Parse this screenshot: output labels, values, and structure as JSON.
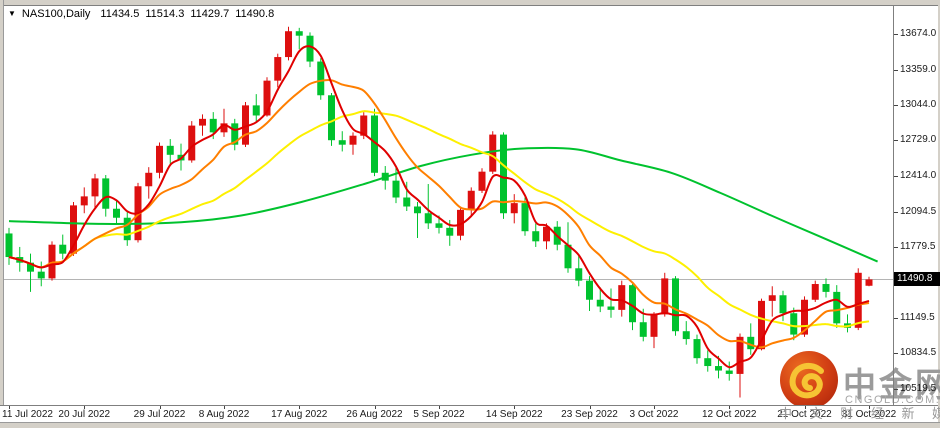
{
  "header": {
    "dropdown_icon": "▼",
    "symbol": "NAS100,Daily",
    "open": "11434.5",
    "high": "11514.3",
    "low": "11429.7",
    "close": "11490.8"
  },
  "price_axis": {
    "tick_labels": [
      "13674.0",
      "13359.0",
      "13044.0",
      "12729.0",
      "12414.0",
      "12094.5",
      "11779.5",
      "11464.5",
      "11149.5",
      "10834.5",
      "10519.5"
    ],
    "current_price_tag": "11490.8"
  },
  "time_axis": {
    "tick_labels": [
      "11 Jul 2022",
      "20 Jul 2022",
      "29 Jul 2022",
      "8 Aug 2022",
      "17 Aug 2022",
      "26 Aug 2022",
      "5 Sep 2022",
      "14 Sep 2022",
      "23 Sep 2022",
      "3 Oct 2022",
      "12 Oct 2022",
      "21 Oct 2022",
      "31 Oct 2022"
    ],
    "tick_bar_indices": [
      0,
      7,
      14,
      20,
      27,
      34,
      40,
      47,
      54,
      60,
      67,
      74,
      80
    ]
  },
  "watermark": {
    "brand": "中金网",
    "domain": "CNGOLD.COM.CN",
    "tagline": "中 文 财 经 新 媒 体",
    "logo_circle_color_outer": "#c2330f",
    "logo_circle_color_inner": "#e8601c",
    "logo_swirl_color": "#f6c434"
  },
  "chart_data": {
    "type": "candlestick",
    "symbol": "NAS100",
    "timeframe": "Daily",
    "grid": false,
    "legend": false,
    "ylim": [
      10350,
      13950
    ],
    "current_price_line": 11490.8,
    "colors": {
      "bull_candle": "#dd0f0f",
      "bear_candle": "#00c22e",
      "ma_fast": "#e00000",
      "ma_mid": "#ff7f00",
      "ma_slow": "#fdf000",
      "ma_long": "#00c22e",
      "price_line": "#b4b4b4"
    },
    "ma_periods_estimated": {
      "fast_red": 4,
      "mid_orange": 9,
      "slow_yellow": 20
    },
    "ma_long_points": [
      [
        0,
        12010
      ],
      [
        8.6,
        11985
      ],
      [
        16,
        12000
      ],
      [
        21.6,
        12060
      ],
      [
        27.2,
        12180
      ],
      [
        32.7,
        12330
      ],
      [
        38.3,
        12500
      ],
      [
        43,
        12600
      ],
      [
        47.6,
        12655
      ],
      [
        52.7,
        12650
      ],
      [
        56.9,
        12550
      ],
      [
        61.6,
        12440
      ],
      [
        66.2,
        12260
      ],
      [
        70.9,
        12060
      ],
      [
        75.5,
        11870
      ],
      [
        80.8,
        11650
      ]
    ],
    "candle_columns": [
      "date",
      "open",
      "high",
      "low",
      "close"
    ],
    "candles": [
      [
        "11 Jul",
        11900,
        11950,
        11620,
        11690
      ],
      [
        "12 Jul",
        11690,
        11780,
        11560,
        11640
      ],
      [
        "13 Jul",
        11640,
        11720,
        11380,
        11560
      ],
      [
        "14 Jul",
        11560,
        11650,
        11430,
        11500
      ],
      [
        "15 Jul",
        11500,
        11830,
        11480,
        11800
      ],
      [
        "18 Jul",
        11800,
        11890,
        11670,
        11720
      ],
      [
        "19 Jul",
        11720,
        12180,
        11700,
        12150
      ],
      [
        "20 Jul",
        12150,
        12310,
        12080,
        12230
      ],
      [
        "21 Jul",
        12230,
        12430,
        12130,
        12390
      ],
      [
        "22 Jul",
        12390,
        12420,
        12050,
        12120
      ],
      [
        "25 Jul",
        12120,
        12200,
        11980,
        12040
      ],
      [
        "26 Jul",
        12040,
        12090,
        11790,
        11840
      ],
      [
        "27 Jul",
        11840,
        12350,
        11820,
        12320
      ],
      [
        "28 Jul",
        12320,
        12490,
        12210,
        12440
      ],
      [
        "29 Jul",
        12440,
        12710,
        12390,
        12680
      ],
      [
        "1 Aug",
        12680,
        12740,
        12520,
        12600
      ],
      [
        "2 Aug",
        12600,
        12700,
        12460,
        12550
      ],
      [
        "3 Aug",
        12550,
        12900,
        12530,
        12860
      ],
      [
        "4 Aug",
        12860,
        12960,
        12770,
        12920
      ],
      [
        "5 Aug",
        12920,
        12980,
        12740,
        12800
      ],
      [
        "8 Aug",
        12800,
        13010,
        12760,
        12880
      ],
      [
        "9 Aug",
        12880,
        12920,
        12640,
        12690
      ],
      [
        "10 Aug",
        12690,
        13070,
        12670,
        13040
      ],
      [
        "11 Aug",
        13040,
        13140,
        12890,
        12950
      ],
      [
        "12 Aug",
        12950,
        13290,
        12940,
        13260
      ],
      [
        "15 Aug",
        13260,
        13500,
        13200,
        13470
      ],
      [
        "16 Aug",
        13470,
        13740,
        13440,
        13700
      ],
      [
        "17 Aug",
        13700,
        13730,
        13540,
        13660
      ],
      [
        "18 Aug",
        13660,
        13690,
        13380,
        13430
      ],
      [
        "19 Aug",
        13430,
        13460,
        13090,
        13130
      ],
      [
        "22 Aug",
        13130,
        13150,
        12680,
        12730
      ],
      [
        "23 Aug",
        12730,
        12810,
        12630,
        12690
      ],
      [
        "24 Aug",
        12690,
        12800,
        12600,
        12770
      ],
      [
        "25 Aug",
        12770,
        12980,
        12740,
        12950
      ],
      [
        "26 Aug",
        12950,
        13010,
        12410,
        12440
      ],
      [
        "29 Aug",
        12440,
        12500,
        12290,
        12370
      ],
      [
        "30 Aug",
        12370,
        12490,
        12170,
        12220
      ],
      [
        "31 Aug",
        12220,
        12360,
        12100,
        12140
      ],
      [
        "1 Sep",
        12140,
        12180,
        11860,
        12080
      ],
      [
        "2 Sep",
        12080,
        12340,
        11940,
        11990
      ],
      [
        "5 Sep",
        11990,
        12060,
        11900,
        11950
      ],
      [
        "6 Sep",
        11950,
        12020,
        11790,
        11880
      ],
      [
        "7 Sep",
        11880,
        12130,
        11840,
        12110
      ],
      [
        "8 Sep",
        12110,
        12310,
        12060,
        12280
      ],
      [
        "9 Sep",
        12280,
        12480,
        12260,
        12450
      ],
      [
        "12 Sep",
        12450,
        12810,
        12430,
        12780
      ],
      [
        "13 Sep",
        12780,
        12800,
        12030,
        12080
      ],
      [
        "14 Sep",
        12080,
        12250,
        11990,
        12170
      ],
      [
        "15 Sep",
        12170,
        12220,
        11880,
        11920
      ],
      [
        "16 Sep",
        11920,
        11990,
        11780,
        11830
      ],
      [
        "19 Sep",
        11830,
        11990,
        11760,
        11960
      ],
      [
        "20 Sep",
        11960,
        12010,
        11750,
        11800
      ],
      [
        "21 Sep",
        11800,
        12000,
        11550,
        11590
      ],
      [
        "22 Sep",
        11590,
        11700,
        11430,
        11480
      ],
      [
        "23 Sep",
        11480,
        11520,
        11210,
        11310
      ],
      [
        "26 Sep",
        11310,
        11420,
        11200,
        11250
      ],
      [
        "27 Sep",
        11250,
        11410,
        11150,
        11220
      ],
      [
        "28 Sep",
        11220,
        11480,
        11160,
        11440
      ],
      [
        "29 Sep",
        11440,
        11450,
        11040,
        11110
      ],
      [
        "30 Sep",
        11110,
        11230,
        10940,
        10980
      ],
      [
        "3 Oct",
        10980,
        11200,
        10880,
        11180
      ],
      [
        "4 Oct",
        11180,
        11550,
        11160,
        11500
      ],
      [
        "5 Oct",
        11500,
        11520,
        10990,
        11030
      ],
      [
        "6 Oct",
        11030,
        11120,
        10910,
        10960
      ],
      [
        "7 Oct",
        10960,
        11000,
        10740,
        10790
      ],
      [
        "10 Oct",
        10790,
        10860,
        10670,
        10720
      ],
      [
        "11 Oct",
        10720,
        10810,
        10610,
        10680
      ],
      [
        "12 Oct",
        10680,
        10760,
        10590,
        10650
      ],
      [
        "13 Oct",
        10650,
        11010,
        10440,
        10980
      ],
      [
        "14 Oct",
        10980,
        11100,
        10820,
        10870
      ],
      [
        "17 Oct",
        10870,
        11320,
        10860,
        11300
      ],
      [
        "18 Oct",
        11300,
        11430,
        11160,
        11350
      ],
      [
        "19 Oct",
        11350,
        11390,
        11120,
        11190
      ],
      [
        "20 Oct",
        11190,
        11240,
        10950,
        11000
      ],
      [
        "21 Oct",
        11000,
        11340,
        10980,
        11310
      ],
      [
        "24 Oct",
        11310,
        11480,
        11290,
        11450
      ],
      [
        "25 Oct",
        11450,
        11500,
        11330,
        11380
      ],
      [
        "26 Oct",
        11380,
        11440,
        11060,
        11100
      ],
      [
        "27 Oct",
        11100,
        11180,
        11020,
        11060
      ],
      [
        "28 Oct",
        11060,
        11590,
        11040,
        11550
      ],
      [
        "31 Oct",
        11434.5,
        11514.3,
        11429.7,
        11490.8
      ]
    ]
  }
}
